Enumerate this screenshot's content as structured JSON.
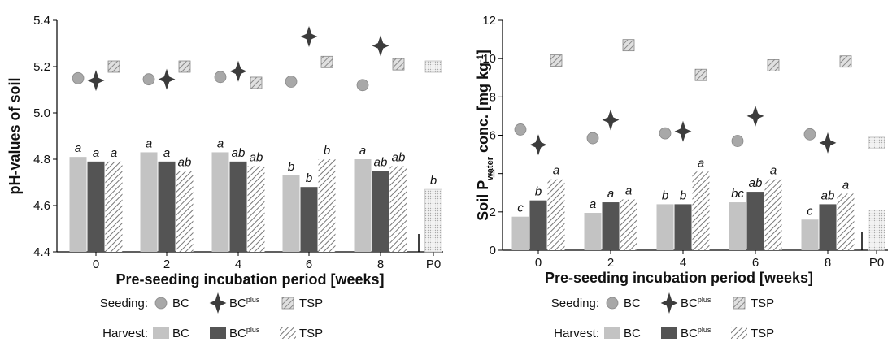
{
  "chart_data": [
    {
      "type": "bar",
      "y_label": [
        {
          "text": "pH-values of soil"
        }
      ],
      "x_label": "Pre-seeding incubation period [weeks]",
      "categories": [
        "0",
        "2",
        "4",
        "6",
        "8",
        "P0"
      ],
      "ylim": [
        4.4,
        5.4
      ],
      "yticks": [
        4.4,
        4.6,
        4.8,
        {
          "value": 5,
          "label": "5.0"
        },
        5.2,
        5.4
      ],
      "harvest": [
        {
          "name": "BC",
          "color": "#c3c3c3",
          "pattern": "solid",
          "values": [
            4.81,
            4.83,
            4.83,
            4.73,
            4.8,
            null
          ],
          "letters": [
            "a",
            "a",
            "a",
            "b",
            "a",
            null
          ]
        },
        {
          "name": "BC",
          "name_sup": "plus",
          "color": "#545454",
          "pattern": "solid",
          "values": [
            4.79,
            4.79,
            4.79,
            4.68,
            4.75,
            null
          ],
          "letters": [
            "a",
            "a",
            "ab",
            "b",
            "ab",
            null
          ]
        },
        {
          "name": "TSP",
          "color": "#777777",
          "pattern": "hatch",
          "values": [
            4.79,
            4.75,
            4.77,
            4.8,
            4.77,
            null
          ],
          "letters": [
            "a",
            "ab",
            "ab",
            "b",
            "ab",
            null
          ]
        }
      ],
      "seeding": [
        {
          "name": "BC",
          "marker": "circle",
          "color": "#a8a8a8",
          "values": [
            5.15,
            5.145,
            5.155,
            5.135,
            5.12,
            null
          ]
        },
        {
          "name": "BC",
          "name_sup": "plus",
          "marker": "star",
          "color": "#3c3c3c",
          "values": [
            5.14,
            5.145,
            5.18,
            5.33,
            5.29,
            null
          ]
        },
        {
          "name": "TSP",
          "marker": "square",
          "color": "#888888",
          "values": [
            5.2,
            5.2,
            5.13,
            5.22,
            5.21,
            null
          ]
        }
      ],
      "control": {
        "harvest": 4.67,
        "harvest_letter": "b",
        "seeding": 5.2
      },
      "legend": {
        "seeding_label": "Seeding:",
        "harvest_label": "Harvest:"
      }
    },
    {
      "type": "bar",
      "y_label": [
        {
          "text": "Soil P"
        },
        {
          "text": "water",
          "sub": true
        },
        {
          "text": " conc. [mg kg"
        },
        {
          "text": "-1",
          "sup": true
        },
        {
          "text": "]"
        }
      ],
      "x_label": "Pre-seeding incubation period [weeks]",
      "categories": [
        "0",
        "2",
        "4",
        "6",
        "8",
        "P0"
      ],
      "ylim": [
        0,
        12
      ],
      "yticks": [
        0,
        2,
        4,
        6,
        8,
        10,
        12
      ],
      "harvest": [
        {
          "name": "BC",
          "color": "#c3c3c3",
          "pattern": "solid",
          "values": [
            1.75,
            1.95,
            2.4,
            2.5,
            1.6,
            null
          ],
          "letters": [
            "c",
            "a",
            "b",
            "bc",
            "c",
            null
          ]
        },
        {
          "name": "BC",
          "name_sup": "plus",
          "color": "#545454",
          "pattern": "solid",
          "values": [
            2.6,
            2.5,
            2.4,
            3.05,
            2.4,
            null
          ],
          "letters": [
            "b",
            "a",
            "b",
            "ab",
            "ab",
            null
          ]
        },
        {
          "name": "TSP",
          "color": "#777777",
          "pattern": "hatch",
          "values": [
            3.7,
            2.65,
            4.1,
            3.7,
            2.95,
            null
          ],
          "letters": [
            "a",
            "a",
            "a",
            "a",
            "a",
            null
          ]
        }
      ],
      "seeding": [
        {
          "name": "BC",
          "marker": "circle",
          "color": "#a8a8a8",
          "values": [
            6.3,
            5.85,
            6.1,
            5.7,
            6.05,
            null
          ]
        },
        {
          "name": "BC",
          "name_sup": "plus",
          "marker": "star",
          "color": "#3c3c3c",
          "values": [
            5.5,
            6.8,
            6.2,
            7.0,
            5.6,
            null
          ]
        },
        {
          "name": "TSP",
          "marker": "square",
          "color": "#888888",
          "values": [
            9.9,
            10.7,
            9.15,
            9.65,
            9.85,
            null
          ]
        }
      ],
      "control": {
        "harvest": 2.1,
        "seeding": 5.6
      },
      "legend": {
        "seeding_label": "Seeding:",
        "harvest_label": "Harvest:"
      }
    }
  ]
}
